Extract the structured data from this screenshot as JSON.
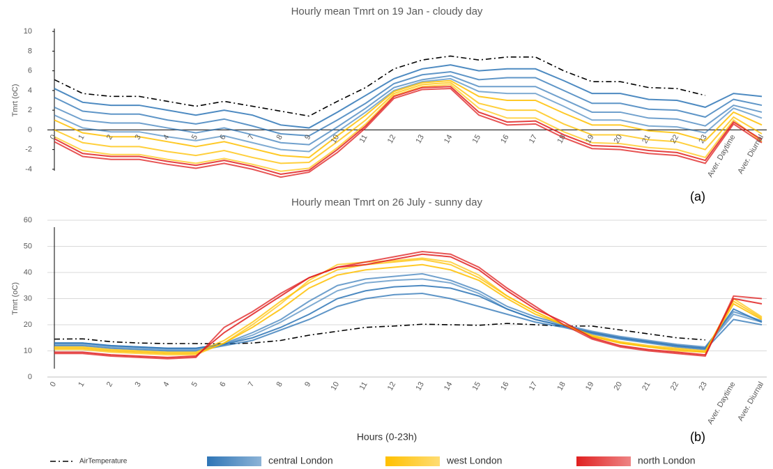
{
  "chart_data": [
    {
      "type": "line",
      "title": "Hourly mean Tmrt on 19 Jan - cloudy day",
      "ylabel": "Tmrt (oC)",
      "annotation": "(a)",
      "categories": [
        "0",
        "1",
        "2",
        "3",
        "4",
        "5",
        "6",
        "7",
        "8",
        "9",
        "10",
        "11",
        "12",
        "13",
        "14",
        "15",
        "16",
        "17",
        "18",
        "19",
        "20",
        "21",
        "22",
        "23",
        "Aver. Daytime",
        "Aver. Diurnal"
      ],
      "ylim": [
        -5,
        11
      ],
      "yticks": [
        -4,
        -2,
        0,
        2,
        4,
        6,
        8,
        10
      ],
      "grid": false,
      "series": [
        {
          "color": "#000000",
          "dash": "dashdot",
          "values": [
            [
              5.1,
              3.7,
              3.4,
              3.4,
              2.9,
              2.4,
              2.9,
              2.4,
              1.9,
              1.4,
              2.9,
              4.3,
              6.2,
              7.1,
              7.5,
              7.1,
              7.4,
              7.4,
              6.0,
              4.9,
              4.9,
              4.3,
              4.2,
              3.5,
              null,
              null
            ]
          ]
        },
        {
          "color": "#2e75b6",
          "values": [
            [
              4.2,
              2.8,
              2.5,
              2.5,
              2.0,
              1.5,
              2.0,
              1.5,
              0.5,
              0.2,
              1.8,
              3.5,
              5.2,
              6.2,
              6.6,
              6.0,
              6.2,
              6.2,
              5.0,
              3.7,
              3.7,
              3.1,
              3.0,
              2.3,
              3.7,
              3.4
            ],
            [
              3.3,
              1.9,
              1.6,
              1.6,
              1.0,
              0.6,
              1.1,
              0.4,
              -0.4,
              -0.6,
              1.0,
              2.7,
              4.7,
              5.6,
              5.9,
              5.1,
              5.3,
              5.3,
              4.0,
              2.7,
              2.7,
              2.1,
              2.0,
              1.3,
              3.1,
              2.5
            ],
            [
              2.3,
              1.0,
              0.7,
              0.7,
              0.2,
              -0.3,
              0.2,
              -0.5,
              -1.3,
              -1.5,
              0.3,
              2.2,
              4.3,
              5.1,
              5.5,
              4.4,
              4.4,
              4.4,
              3.1,
              1.8,
              1.8,
              1.2,
              1.1,
              0.4,
              2.5,
              1.8
            ],
            [
              1.5,
              0.2,
              -0.2,
              -0.2,
              -0.7,
              -1.1,
              -0.6,
              -1.3,
              -2.0,
              -2.2,
              -0.2,
              1.8,
              4.0,
              4.9,
              5.2,
              3.9,
              3.7,
              3.7,
              2.4,
              1.0,
              1.0,
              0.4,
              0.3,
              -0.3,
              2.2,
              1.2
            ]
          ]
        },
        {
          "color": "#ffc000",
          "values": [
            [
              1.0,
              -0.3,
              -0.7,
              -0.7,
              -1.2,
              -1.7,
              -1.2,
              -1.9,
              -2.6,
              -2.8,
              -0.6,
              1.5,
              3.9,
              4.8,
              5.0,
              3.4,
              3.0,
              3.0,
              1.7,
              0.5,
              0.5,
              -0.1,
              -0.3,
              -1.1,
              1.8,
              0.5
            ],
            [
              0.0,
              -1.3,
              -1.7,
              -1.7,
              -2.2,
              -2.6,
              -2.1,
              -2.8,
              -3.4,
              -3.3,
              -1.2,
              1.0,
              3.7,
              4.6,
              4.8,
              2.7,
              2.0,
              2.0,
              0.6,
              -0.5,
              -0.5,
              -1.0,
              -1.2,
              -2.0,
              1.3,
              -0.4
            ],
            [
              -0.7,
              -2.1,
              -2.5,
              -2.5,
              -3.0,
              -3.4,
              -2.9,
              -3.5,
              -4.2,
              -3.9,
              -1.8,
              0.6,
              3.5,
              4.4,
              4.6,
              2.2,
              1.2,
              1.2,
              -0.2,
              -1.3,
              -1.4,
              -1.8,
              -2.0,
              -2.8,
              1.0,
              -1.2
            ]
          ]
        },
        {
          "color": "#e02020",
          "values": [
            [
              -0.9,
              -2.4,
              -2.7,
              -2.7,
              -3.2,
              -3.6,
              -3.1,
              -3.7,
              -4.5,
              -4.1,
              -2.0,
              0.4,
              3.4,
              4.3,
              4.4,
              1.8,
              0.8,
              0.9,
              -0.5,
              -1.6,
              -1.7,
              -2.1,
              -2.3,
              -3.1,
              0.8,
              -1.0
            ],
            [
              -1.2,
              -2.7,
              -3.0,
              -3.0,
              -3.5,
              -3.9,
              -3.4,
              -4.0,
              -4.8,
              -4.3,
              -2.3,
              0.2,
              3.2,
              4.1,
              4.2,
              1.5,
              0.5,
              0.6,
              -0.8,
              -1.9,
              -2.0,
              -2.4,
              -2.6,
              -3.4,
              0.6,
              -1.3
            ]
          ]
        }
      ]
    },
    {
      "type": "line",
      "title": "Hourly mean Tmrt on 26 July - sunny day",
      "ylabel": "Tmrt (oC)",
      "xlabel": "Hours (0-23h)",
      "annotation": "(b)",
      "categories": [
        "0",
        "1",
        "2",
        "3",
        "4",
        "5",
        "6",
        "7",
        "8",
        "9",
        "10",
        "11",
        "12",
        "13",
        "14",
        "15",
        "16",
        "17",
        "18",
        "19",
        "20",
        "21",
        "22",
        "23",
        "Aver. Daytime",
        "Aver. Diurnal"
      ],
      "ylim": [
        0,
        60
      ],
      "yticks": [
        0,
        10,
        20,
        30,
        40,
        50,
        60
      ],
      "grid": true,
      "series": [
        {
          "name": "AirTemperature",
          "color": "#000000",
          "dash": "dashdot",
          "values": [
            [
              14.5,
              14.6,
              13.5,
              13,
              12.8,
              12.8,
              12.7,
              13,
              14,
              16,
              17.5,
              19,
              19.5,
              20.2,
              20,
              19.8,
              20.5,
              20,
              19.5,
              19.5,
              18,
              16.5,
              15,
              14.2,
              null,
              null
            ]
          ]
        },
        {
          "name": "central London",
          "color": "#2e75b6",
          "values": [
            [
              13,
              13,
              12,
              11.5,
              11,
              11,
              12.5,
              15,
              19,
              24,
              30,
              33,
              34.5,
              35,
              34,
              31,
              26,
              22,
              19.5,
              17,
              15,
              13.5,
              12,
              11,
              26,
              21
            ],
            [
              12,
              12,
              11,
              10.5,
              10,
              10,
              12,
              14,
              18,
              22,
              27,
              30,
              31.5,
              32,
              30,
              27,
              24,
              21,
              19,
              16.5,
              14.5,
              13,
              11.5,
              10.5,
              22,
              20
            ],
            [
              13,
              13,
              12,
              11.5,
              11,
              11,
              12.8,
              17,
              22,
              29,
              35,
              37.5,
              38.5,
              39.5,
              37,
              33,
              27,
              23,
              20,
              17.5,
              15.5,
              14,
              12.5,
              11.5,
              25,
              21.5
            ],
            [
              12.5,
              12.5,
              11.5,
              11,
              10.5,
              10.5,
              12.5,
              16,
              21,
              27,
              33,
              36,
              37,
              37.5,
              36,
              32,
              26,
              22,
              19.5,
              17,
              15,
              13.5,
              12,
              11,
              24,
              21
            ]
          ]
        },
        {
          "name": "west London",
          "color": "#ffc000",
          "values": [
            [
              11,
              11,
              10,
              9.5,
              9,
              9,
              13,
              19,
              26,
              34,
              39,
              41,
              42,
              43,
              41,
              37,
              30,
              24,
              20,
              15.5,
              13,
              11.5,
              10.5,
              9.5,
              28,
              22
            ],
            [
              11.5,
              11.5,
              10.5,
              10,
              9.5,
              9.5,
              14,
              21,
              29,
              36,
              41,
              43,
              44,
              45,
              43,
              38,
              31,
              25,
              20,
              16,
              13.5,
              12,
              11,
              10,
              29,
              22.5
            ],
            [
              10.5,
              10.5,
              9.5,
              9,
              8.5,
              8.5,
              13,
              20,
              28,
              37,
              43,
              44,
              44.5,
              45.5,
              44,
              39,
              31,
              25,
              20,
              15.5,
              13,
              11.5,
              10,
              9.5,
              30,
              23
            ]
          ]
        },
        {
          "name": "north London",
          "color": "#e02020",
          "values": [
            [
              9.5,
              9.5,
              8.5,
              8,
              7.5,
              8,
              17,
              24,
              31,
              38,
              42,
              43,
              45,
              47,
              46,
              41,
              33,
              26,
              21,
              15,
              12,
              10.5,
              9.5,
              8.5,
              30,
              28
            ],
            [
              9,
              9,
              8,
              7.5,
              7,
              7.5,
              19,
              25,
              32,
              38,
              42,
              44,
              46,
              48,
              47,
              42,
              34,
              27,
              20,
              14.5,
              11.5,
              10,
              9,
              8,
              31,
              30
            ]
          ]
        }
      ]
    }
  ]
}
